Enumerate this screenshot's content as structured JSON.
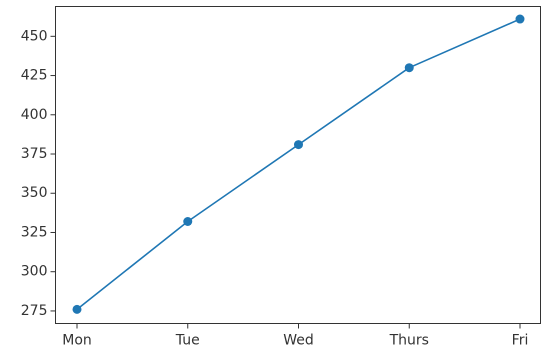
{
  "chart_data": {
    "type": "line",
    "categories": [
      "Mon",
      "Tue",
      "Wed",
      "Thurs",
      "Fri"
    ],
    "series": [
      {
        "values": [
          276,
          332,
          381,
          430,
          461
        ],
        "color": "#1f77b4"
      }
    ],
    "ylim": [
      267,
      469
    ],
    "yticks": [
      275,
      300,
      325,
      350,
      375,
      400,
      425,
      450
    ],
    "grid": false,
    "markers": true
  }
}
